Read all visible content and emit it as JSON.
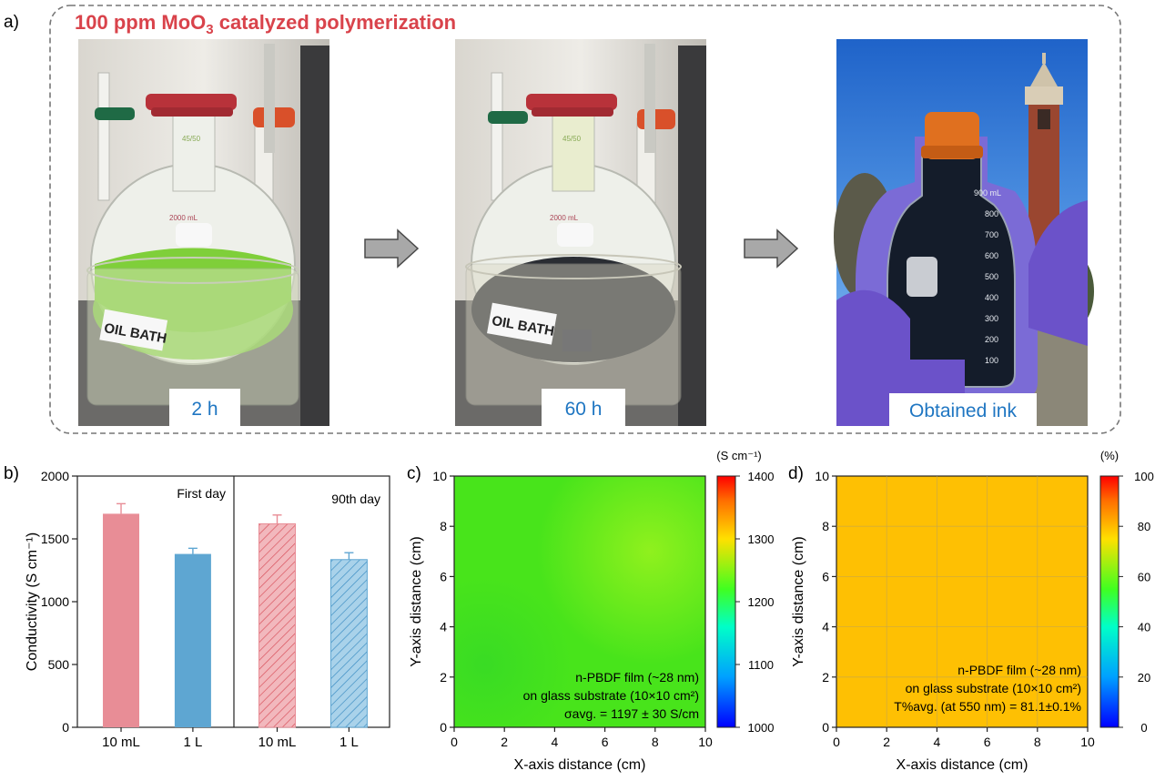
{
  "panel_a": {
    "label": "a)",
    "title_prefix": "100 ppm MoO",
    "title_sub": "3",
    "title_suffix": " catalyzed polymerization",
    "photos": [
      {
        "caption": "2 h",
        "liquid_color": "#7fcf3a"
      },
      {
        "caption": "60 h",
        "liquid_color": "#2a2d33"
      },
      {
        "caption": "Obtained ink",
        "liquid_color": "#141c2a"
      }
    ],
    "bath_label": "OIL BATH",
    "flask_marks": [
      "45/50",
      "2000 mL"
    ],
    "bottle_ticks": [
      "900 mL",
      "800",
      "700",
      "600",
      "500",
      "400",
      "300",
      "200",
      "100"
    ],
    "colors": {
      "title": "#d9434b",
      "caption": "#1f76c2",
      "border": "#777777"
    }
  },
  "panel_b": {
    "label": "b)"
  },
  "panel_c": {
    "label": "c)"
  },
  "panel_d": {
    "label": "d)"
  },
  "chart_data": [
    {
      "type": "bar",
      "ylabel": "Conductivity (S cm⁻¹)",
      "ylim": [
        0,
        2000
      ],
      "yticks": [
        "0",
        "500",
        "1000",
        "1500",
        "2000"
      ],
      "groups": [
        {
          "label": "First day",
          "categories": [
            "10 mL",
            "1 L"
          ],
          "values": [
            1700,
            1380
          ],
          "errors": [
            80,
            45
          ],
          "hatched": false
        },
        {
          "label": "90th day",
          "categories": [
            "10 mL",
            "1 L"
          ],
          "values": [
            1620,
            1335
          ],
          "errors": [
            70,
            55
          ],
          "hatched": true
        }
      ],
      "colors": [
        "#e88d96",
        "#5ea6d2"
      ]
    },
    {
      "type": "heatmap",
      "xlabel": "X-axis distance (cm)",
      "ylabel": "Y-axis distance (cm)",
      "xlim": [
        0,
        10
      ],
      "ylim": [
        0,
        10
      ],
      "xticks": [
        "0",
        "2",
        "4",
        "6",
        "8",
        "10"
      ],
      "yticks": [
        "0",
        "2",
        "4",
        "6",
        "8",
        "10"
      ],
      "colorbar_title": "(S cm⁻¹)",
      "colorbar_ticks": [
        "1000",
        "1100",
        "1200",
        "1300",
        "1400"
      ],
      "colorbar_range": [
        1000,
        1400
      ],
      "base_color": "#48e41b",
      "highlight_color": "#9cf31e",
      "annotation_lines": [
        "n-PBDF film (~28 nm)",
        "on glass substrate (10×10 cm²)",
        "σavg. = 1197 ± 30 S/cm"
      ],
      "grid": false
    },
    {
      "type": "heatmap",
      "xlabel": "X-axis distance (cm)",
      "ylabel": "Y-axis distance (cm)",
      "xlim": [
        0,
        10
      ],
      "ylim": [
        0,
        10
      ],
      "xticks": [
        "0",
        "2",
        "4",
        "6",
        "8",
        "10"
      ],
      "yticks": [
        "0",
        "2",
        "4",
        "6",
        "8",
        "10"
      ],
      "colorbar_title": "(%)",
      "colorbar_ticks": [
        "0",
        "20",
        "40",
        "60",
        "80",
        "100"
      ],
      "colorbar_range": [
        0,
        100
      ],
      "base_color": "#fec003",
      "annotation_lines": [
        "n-PBDF film (~28 nm)",
        "on glass substrate (10×10 cm²)",
        "T%avg. (at 550 nm) = 81.1±0.1%"
      ],
      "grid": true
    }
  ]
}
